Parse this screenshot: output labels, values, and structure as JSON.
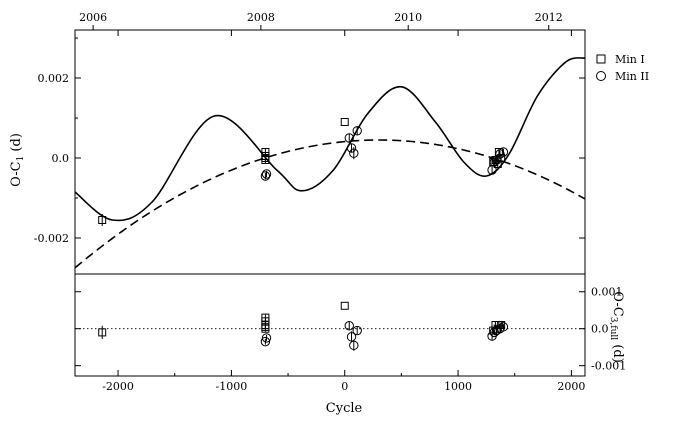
{
  "chart_data": {
    "type": "scatter",
    "xlabel": "Cycle",
    "ylabel_top": "O-C",
    "ylabel_top_sub": "1",
    "ylabel_top_unit": " (d)",
    "ylabel_bottom": "O-C",
    "ylabel_bottom_sub": "3,full",
    "ylabel_bottom_unit": " (d)",
    "xlim": [
      -2380,
      2120
    ],
    "ylim_top": [
      -0.0029,
      0.0032
    ],
    "ylim_bottom": [
      -0.00128,
      0.00148
    ],
    "x_ticks": [
      -2000,
      -1000,
      0,
      1000,
      2000
    ],
    "x_tick_labels": [
      "-2000",
      "-1000",
      "0",
      "1000",
      "2000"
    ],
    "y_ticks_top": [
      -0.002,
      0.0,
      0.002
    ],
    "y_tick_labels_top": [
      "-0.002",
      "0.0",
      "0.002"
    ],
    "y_ticks_bottom": [
      -0.001,
      0.0,
      0.001
    ],
    "y_tick_labels_bottom": [
      "-0.001",
      "0.0",
      "0.001"
    ],
    "top_axis_years": [
      2006,
      2008,
      2010,
      2012
    ],
    "top_axis_year_labels": [
      "2006",
      "2008",
      "2010",
      "2012"
    ],
    "top_axis_year_cycles": [
      -2220,
      -740,
      560,
      1800
    ],
    "legend": [
      {
        "label": "Min I",
        "marker": "square"
      },
      {
        "label": "Min II",
        "marker": "circle"
      }
    ],
    "fit_full": {
      "style": "solid",
      "x": [
        -2380,
        -2050,
        -1700,
        -1150,
        -600,
        -380,
        -100,
        200,
        500,
        800,
        1050,
        1250,
        1450,
        1700,
        1950,
        2120
      ],
      "y": [
        -0.00085,
        -0.00155,
        -0.0011,
        0.00105,
        -0.0003,
        -0.00082,
        -0.0003,
        0.0011,
        0.00178,
        0.0009,
        -0.0001,
        -0.00045,
        0.0001,
        0.00155,
        0.0024,
        0.0025
      ]
    },
    "fit_quadratic": {
      "style": "dashed",
      "vertex_x": 300,
      "vertex_y": 0.00045,
      "curvature": 4.45e-10
    },
    "series": [
      {
        "name": "Min I",
        "marker": "square",
        "panel": "top",
        "x": [
          -2140,
          -700,
          -700,
          -700,
          -700,
          0,
          1310,
          1330,
          1350,
          1360,
          1380
        ],
        "y": [
          -0.00155,
          0.00015,
          5e-05,
          -5e-05,
          0.0,
          0.0009,
          -0.0001,
          -5e-05,
          -0.00015,
          0.00015,
          0.0
        ],
        "err": [
          0.00015,
          0.0001,
          0.0001,
          0.0001,
          0.0001,
          0.0,
          8e-05,
          8e-05,
          8e-05,
          8e-05,
          8e-05
        ]
      },
      {
        "name": "Min II",
        "marker": "circle",
        "panel": "top",
        "x": [
          -700,
          -690,
          40,
          60,
          80,
          110,
          1300,
          1320,
          1340,
          1370,
          1400
        ],
        "y": [
          -0.00045,
          -0.0004,
          0.0005,
          0.00025,
          0.00012,
          0.00068,
          -0.0003,
          -0.0001,
          -5e-05,
          0.0001,
          0.00015
        ],
        "err": [
          8e-05,
          8e-05,
          0.0001,
          0.0001,
          0.00015,
          0.0001,
          0.0001,
          8e-05,
          8e-05,
          8e-05,
          8e-05
        ]
      },
      {
        "name": "Min I",
        "marker": "square",
        "panel": "bottom",
        "x": [
          -2140,
          -700,
          -700,
          -700,
          -700,
          -700,
          0,
          1310,
          1330,
          1350,
          1360,
          1380
        ],
        "y": [
          -0.0001,
          0.0003,
          0.0002,
          0.0001,
          0.0,
          5e-05,
          0.00062,
          -5e-05,
          0.0001,
          0.0,
          0.0001,
          0.0001
        ],
        "err": [
          0.00018,
          8e-05,
          8e-05,
          8e-05,
          8e-05,
          8e-05,
          0.0,
          8e-05,
          8e-05,
          8e-05,
          8e-05,
          8e-05
        ]
      },
      {
        "name": "Min II",
        "marker": "circle",
        "panel": "bottom",
        "x": [
          -700,
          -690,
          40,
          60,
          80,
          110,
          1300,
          1320,
          1340,
          1370,
          1400
        ],
        "y": [
          -0.00035,
          -0.00025,
          8e-05,
          -0.00022,
          -0.00045,
          -5e-05,
          -0.0002,
          -0.0001,
          -5e-05,
          0.0,
          5e-05
        ],
        "err": [
          8e-05,
          8e-05,
          0.0001,
          0.00015,
          0.00015,
          0.0001,
          0.0001,
          8e-05,
          8e-05,
          8e-05,
          8e-05
        ]
      }
    ]
  }
}
